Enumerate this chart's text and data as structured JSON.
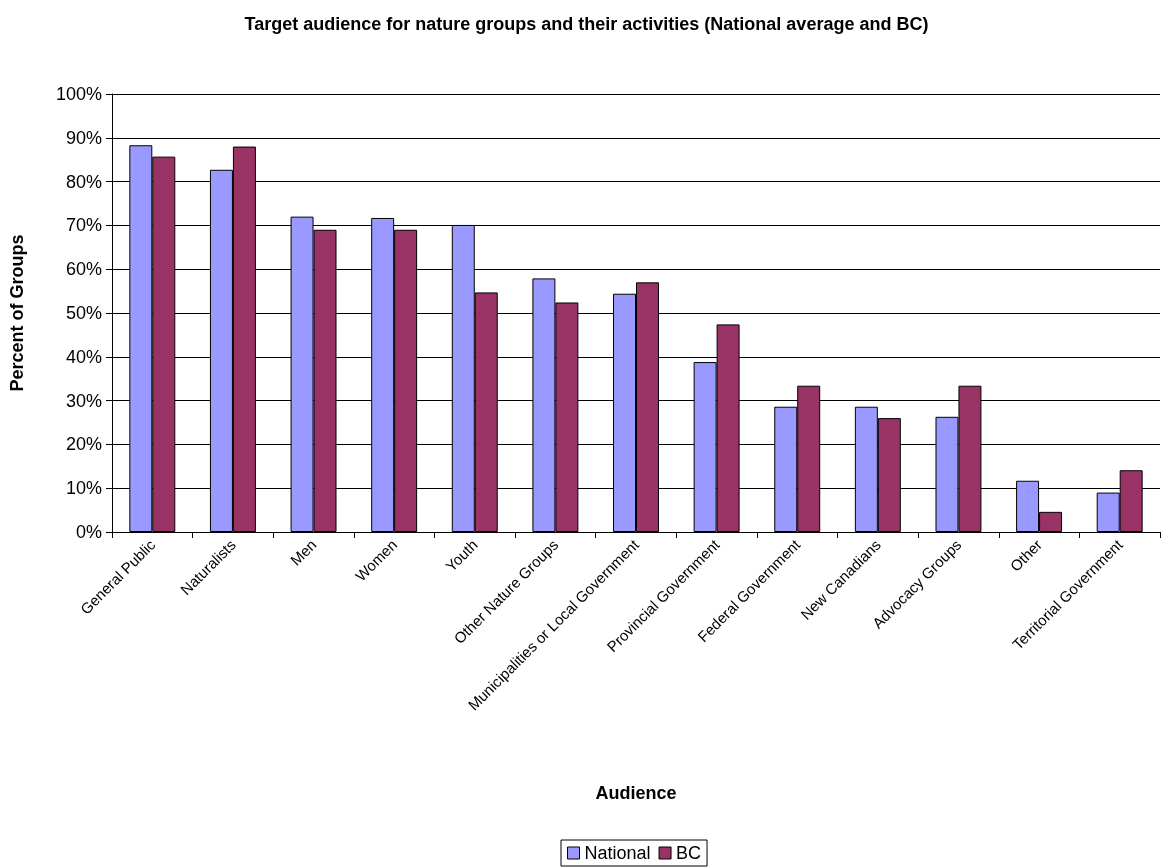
{
  "chart_data": {
    "type": "bar",
    "title": "Target audience for nature groups and their activities (National average and BC)",
    "xlabel": "Audience",
    "ylabel": "Percent of Groups",
    "categories": [
      "General Public",
      "Naturalists",
      "Men",
      "Women",
      "Youth",
      "Other Nature Groups",
      "Municipalities or Local Government",
      "Provincial Government",
      "Federal Government",
      "New Canadians",
      "Advocacy Groups",
      "Other",
      "Territorial Government"
    ],
    "series": [
      {
        "name": "National",
        "color": "#9999ff",
        "values": [
          88.3,
          82.7,
          72.0,
          71.7,
          70.1,
          57.9,
          54.4,
          38.8,
          28.6,
          28.6,
          26.3,
          11.7,
          9.0
        ]
      },
      {
        "name": "BC",
        "color": "#993366",
        "values": [
          85.7,
          88.0,
          69.0,
          69.0,
          54.7,
          52.4,
          57.0,
          47.4,
          33.4,
          26.0,
          33.4,
          4.6,
          14.1
        ]
      }
    ],
    "ylim": [
      0,
      100
    ],
    "yticks": [
      {
        "value": 0,
        "label": "0%"
      },
      {
        "value": 10,
        "label": "10%"
      },
      {
        "value": 20,
        "label": "20%"
      },
      {
        "value": 30,
        "label": "30%"
      },
      {
        "value": 40,
        "label": "40%"
      },
      {
        "value": 50,
        "label": "50%"
      },
      {
        "value": 60,
        "label": "60%"
      },
      {
        "value": 70,
        "label": "70%"
      },
      {
        "value": 80,
        "label": "80%"
      },
      {
        "value": 90,
        "label": "90%"
      },
      {
        "value": 100,
        "label": "100%"
      }
    ],
    "grid": "y",
    "legend": "bottom"
  }
}
